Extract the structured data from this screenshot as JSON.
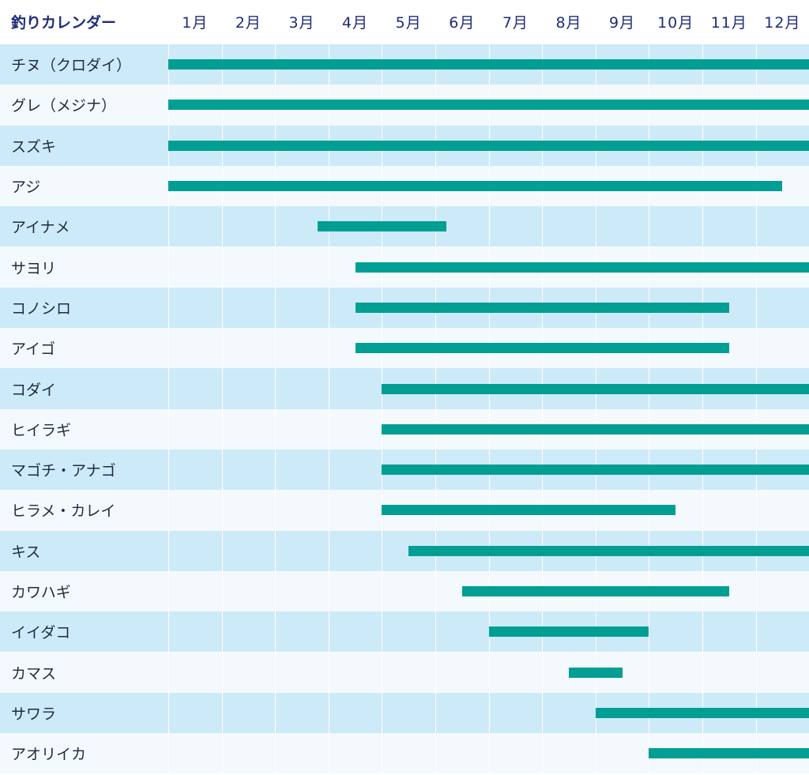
{
  "chart_data": {
    "type": "gantt",
    "title": "釣りカレンダー",
    "months": [
      "1月",
      "2月",
      "3月",
      "4月",
      "5月",
      "6月",
      "7月",
      "8月",
      "9月",
      "10月",
      "11月",
      "12月"
    ],
    "bar_color": "#009e93",
    "row_colors": [
      "#cdeaf8",
      "#f3f9fd"
    ],
    "header_color": "#1f2d7a",
    "series": [
      {
        "name": "チヌ（クロダイ）",
        "start": 0,
        "end": 12
      },
      {
        "name": "グレ（メジナ）",
        "start": 0,
        "end": 12
      },
      {
        "name": "スズキ",
        "start": 0,
        "end": 12
      },
      {
        "name": "アジ",
        "start": 0,
        "end": 11.5
      },
      {
        "name": "アイナメ",
        "start": 2.8,
        "end": 5.2
      },
      {
        "name": " サヨリ",
        "start": 3.5,
        "end": 12
      },
      {
        "name": "コノシロ",
        "start": 3.5,
        "end": 10.5
      },
      {
        "name": "アイゴ",
        "start": 3.5,
        "end": 10.5
      },
      {
        "name": "コダイ",
        "start": 4.0,
        "end": 12
      },
      {
        "name": "ヒイラギ",
        "start": 4.0,
        "end": 12
      },
      {
        "name": "マゴチ・アナゴ",
        "start": 4.0,
        "end": 12
      },
      {
        "name": "ヒラメ・カレイ",
        "start": 4.0,
        "end": 9.5
      },
      {
        "name": "キス",
        "start": 4.5,
        "end": 12
      },
      {
        "name": "カワハギ",
        "start": 5.5,
        "end": 10.5
      },
      {
        "name": "イイダコ",
        "start": 6.0,
        "end": 9.0
      },
      {
        "name": "カマス",
        "start": 7.5,
        "end": 8.5
      },
      {
        "name": "サワラ",
        "start": 8.0,
        "end": 12
      },
      {
        "name": "アオリイカ",
        "start": 9.0,
        "end": 12
      }
    ]
  }
}
